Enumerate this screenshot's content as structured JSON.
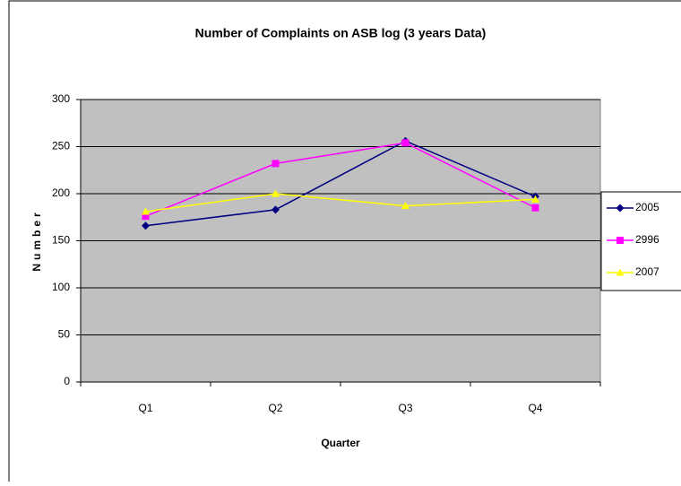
{
  "chart_data": {
    "type": "line",
    "title": "Number of Complaints on ASB log (3 years Data)",
    "x_label": "Quarter",
    "y_label": "Number",
    "categories": [
      "Q1",
      "Q2",
      "Q3",
      "Q4"
    ],
    "series": [
      {
        "name": "2005",
        "color": "#000080",
        "marker": "diamond",
        "values": [
          166,
          183,
          256,
          197
        ]
      },
      {
        "name": "2996",
        "color": "#ff00ff",
        "marker": "square",
        "values": [
          176,
          232,
          254,
          185
        ]
      },
      {
        "name": "2007",
        "color": "#ffff00",
        "marker": "triangle",
        "values": [
          181,
          200,
          187,
          194
        ]
      }
    ],
    "ylim": [
      0,
      300
    ],
    "yticks": [
      0,
      50,
      100,
      150,
      200,
      250,
      300
    ],
    "grid": true,
    "plot_background": "#c0c0c0",
    "legend": "right"
  }
}
